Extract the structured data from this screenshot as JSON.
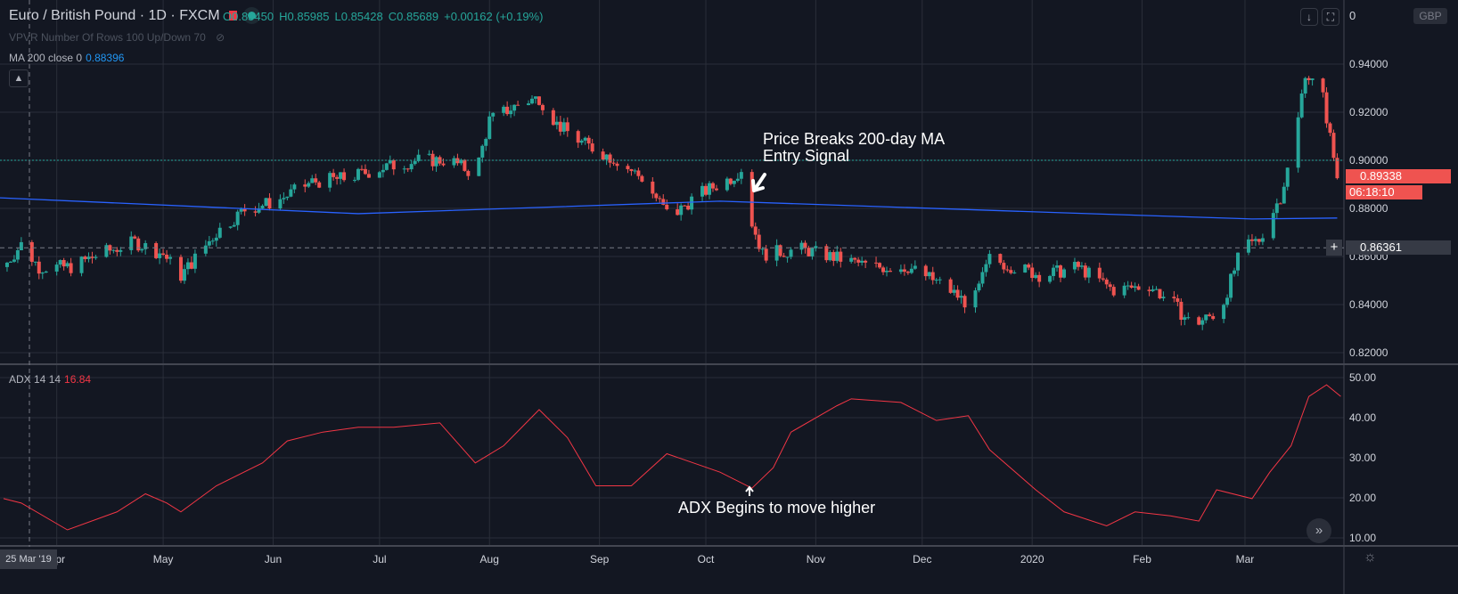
{
  "header": {
    "symbol": "Euro / British Pound · 1D · FXCM",
    "open": "O0.85450",
    "high": "H0.85985",
    "low": "L0.85428",
    "close": "C0.85689",
    "change": "+0.00162 (+0.19%)"
  },
  "indicators": {
    "vpvr": "VPVR Number Of Rows 100 Up/Down 70",
    "ma_label": "MA 200 close 0",
    "ma_value": "0.88396",
    "adx_label": "ADX 14 14",
    "adx_value": "16.84"
  },
  "toolbar": {
    "currency": "GBP",
    "top_cut_label": "0",
    "collapse_icon": "chevron-up-icon",
    "scroll_icon": "double-chevron-right-icon",
    "settings_icon": "gear-icon"
  },
  "tags": {
    "last_price": "0.89338",
    "countdown": "06:18:10",
    "crosshair_price": "0.86361",
    "crosshair_date": "25 Mar '19"
  },
  "annotations": {
    "ma_break_line1": "Price Breaks 200-day MA",
    "ma_break_line2": "Entry Signal",
    "adx_note": "ADX Begins to move higher"
  },
  "colors": {
    "up": "#26a69a",
    "down": "#ef5350",
    "ma": "#2962ff",
    "adx": "#f23645",
    "background": "#131722",
    "grid": "#2a2e39"
  },
  "chart_data": [
    {
      "type": "candlestick",
      "title": "Euro / British Pound · 1D · FXCM",
      "ylim": [
        0.81,
        0.96
      ],
      "y_ticks": [
        "0.94000",
        "0.92000",
        "0.90000",
        "0.88000",
        "0.86000",
        "0.84000",
        "0.82000"
      ],
      "x_ticks": [
        "Apr",
        "May",
        "Jun",
        "Jul",
        "Aug",
        "Sep",
        "Oct",
        "Nov",
        "Dec",
        "2020",
        "Feb",
        "Mar"
      ],
      "x_range": [
        "2019-03-16",
        "2020-03-29"
      ],
      "close_path": [
        [
          "2019-03-17",
          0.8556
        ],
        [
          "2019-03-22",
          0.865
        ],
        [
          "2019-03-27",
          0.8556
        ],
        [
          "2019-04-05",
          0.8556
        ],
        [
          "2019-04-13",
          0.861
        ],
        [
          "2019-04-23",
          0.866
        ],
        [
          "2019-05-01",
          0.861
        ],
        [
          "2019-05-06",
          0.852
        ],
        [
          "2019-05-16",
          0.87
        ],
        [
          "2019-05-24",
          0.8796
        ],
        [
          "2019-06-02",
          0.883
        ],
        [
          "2019-06-12",
          0.891
        ],
        [
          "2019-06-22",
          0.8926
        ],
        [
          "2019-07-02",
          0.897
        ],
        [
          "2019-07-12",
          0.9
        ],
        [
          "2019-07-21",
          0.9
        ],
        [
          "2019-07-28",
          0.894
        ],
        [
          "2019-08-01",
          0.9167
        ],
        [
          "2019-08-10",
          0.924
        ],
        [
          "2019-08-15",
          0.926
        ],
        [
          "2019-08-20",
          0.915
        ],
        [
          "2019-08-27",
          0.9074
        ],
        [
          "2019-09-06",
          0.9
        ],
        [
          "2019-09-13",
          0.8926
        ],
        [
          "2019-09-21",
          0.876
        ],
        [
          "2019-09-28",
          0.885
        ],
        [
          "2019-10-08",
          0.8926
        ],
        [
          "2019-10-12",
          0.898
        ],
        [
          "2019-10-14",
          0.874
        ],
        [
          "2019-10-17",
          0.861
        ],
        [
          "2019-10-28",
          0.863
        ],
        [
          "2019-11-07",
          0.8593
        ],
        [
          "2019-11-17",
          0.8556
        ],
        [
          "2019-11-27",
          0.8556
        ],
        [
          "2019-12-07",
          0.848
        ],
        [
          "2019-12-15",
          0.839
        ],
        [
          "2019-12-20",
          0.859
        ],
        [
          "2019-12-27",
          0.8556
        ],
        [
          "2020-01-04",
          0.852
        ],
        [
          "2020-01-14",
          0.8556
        ],
        [
          "2020-01-24",
          0.846
        ],
        [
          "2020-02-03",
          0.848
        ],
        [
          "2020-02-10",
          0.84
        ],
        [
          "2020-02-15",
          0.8315
        ],
        [
          "2020-02-23",
          0.837
        ],
        [
          "2020-02-29",
          0.863
        ],
        [
          "2020-03-05",
          0.867
        ],
        [
          "2020-03-11",
          0.885
        ],
        [
          "2020-03-15",
          0.907
        ],
        [
          "2020-03-18",
          0.937
        ],
        [
          "2020-03-23",
          0.926
        ],
        [
          "2020-03-27",
          0.893
        ]
      ],
      "ma200": [
        [
          "2019-03-16",
          0.8844
        ],
        [
          "2019-06-25",
          0.8778
        ],
        [
          "2019-10-05",
          0.883
        ],
        [
          "2020-01-13",
          0.878
        ],
        [
          "2020-03-03",
          0.8756
        ],
        [
          "2020-03-27",
          0.876
        ]
      ],
      "hlines": {
        "current": 0.9,
        "crosshair": 0.86361
      }
    },
    {
      "type": "line",
      "title": "ADX 14 14",
      "ylim": [
        8,
        52
      ],
      "y_ticks": [
        "50.00",
        "40.00",
        "30.00",
        "20.00",
        "10.00"
      ],
      "adx": [
        [
          "2019-03-17",
          19.8
        ],
        [
          "2019-03-22",
          18.7
        ],
        [
          "2019-04-04",
          12
        ],
        [
          "2019-04-18",
          16.5
        ],
        [
          "2019-04-26",
          21
        ],
        [
          "2019-05-02",
          18.7
        ],
        [
          "2019-05-06",
          16.5
        ],
        [
          "2019-05-16",
          23
        ],
        [
          "2019-05-29",
          28.7
        ],
        [
          "2019-06-05",
          34.2
        ],
        [
          "2019-06-15",
          36.4
        ],
        [
          "2019-06-25",
          37.6
        ],
        [
          "2019-07-05",
          37.6
        ],
        [
          "2019-07-18",
          38.7
        ],
        [
          "2019-07-28",
          28.7
        ],
        [
          "2019-08-05",
          33
        ],
        [
          "2019-08-15",
          42
        ],
        [
          "2019-08-23",
          35
        ],
        [
          "2019-08-31",
          23
        ],
        [
          "2019-09-10",
          23
        ],
        [
          "2019-09-20",
          31
        ],
        [
          "2019-10-05",
          26.4
        ],
        [
          "2019-10-14",
          22.4
        ],
        [
          "2019-10-20",
          27.5
        ],
        [
          "2019-10-25",
          36.4
        ],
        [
          "2019-11-07",
          43
        ],
        [
          "2019-11-11",
          44.7
        ],
        [
          "2019-11-25",
          43.8
        ],
        [
          "2019-12-05",
          39.3
        ],
        [
          "2019-12-14",
          40.5
        ],
        [
          "2019-12-20",
          32
        ],
        [
          "2020-01-02",
          22
        ],
        [
          "2020-01-10",
          16.5
        ],
        [
          "2020-01-22",
          13
        ],
        [
          "2020-01-30",
          16.5
        ],
        [
          "2020-02-09",
          15.5
        ],
        [
          "2020-02-17",
          14.2
        ],
        [
          "2020-02-22",
          22
        ],
        [
          "2020-03-03",
          19.8
        ],
        [
          "2020-03-08",
          26.4
        ],
        [
          "2020-03-14",
          33
        ],
        [
          "2020-03-19",
          45.3
        ],
        [
          "2020-03-24",
          48.2
        ],
        [
          "2020-03-28",
          45.3
        ]
      ]
    }
  ]
}
